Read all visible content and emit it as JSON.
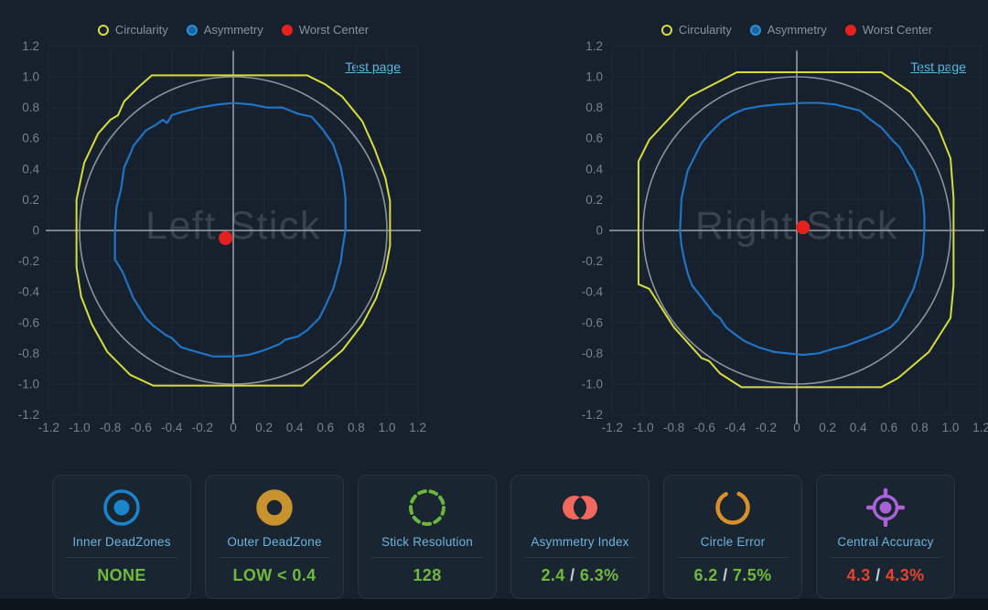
{
  "colors": {
    "background": "#16212d",
    "grid": "#1d2a37",
    "axis": "#9aa1a8",
    "tick_text": "#78828c",
    "legend_text": "#8a929b",
    "unit_circle": "#8b9299",
    "circularity": "#d8dc3a",
    "asymmetry": "#2173c4",
    "worst_center": "#e5201f",
    "link": "#56bade",
    "watermark": "#38424e",
    "card_label": "#6fb3d9",
    "good": "#71b93c",
    "bad": "#e8422e",
    "separator": "#c4cdd4"
  },
  "chart_data": {
    "type": "scatter",
    "legend": {
      "position": "top",
      "items": [
        {
          "label": "Circularity",
          "ring": "#d9dd3c",
          "fill": "none"
        },
        {
          "label": "Asymmetry",
          "ring": "#2f8fd6",
          "fill": "#1663a6"
        },
        {
          "label": "Worst Center",
          "ring": "#e8201f",
          "fill": "#e8201f"
        }
      ]
    },
    "axis": {
      "range": [
        -1.2,
        1.2
      ],
      "grid": true,
      "tick_labels": [
        "-1.2",
        "-1.0",
        "-0.8",
        "-0.6",
        "-0.4",
        "-0.2",
        "0",
        "0.2",
        "0.4",
        "0.6",
        "0.8",
        "1.0",
        "1.2"
      ]
    },
    "charts": [
      {
        "watermark": "Left Stick",
        "link_label": "Test page",
        "unit_circle_radius": 1.0,
        "worst_center": [
          -0.05,
          -0.05
        ],
        "circularity_outline": [
          [
            -0.53,
            1.01
          ],
          [
            0.48,
            1.01
          ],
          [
            0.6,
            0.95
          ],
          [
            0.71,
            0.87
          ],
          [
            0.84,
            0.71
          ],
          [
            0.92,
            0.53
          ],
          [
            0.99,
            0.34
          ],
          [
            1.02,
            0.19
          ],
          [
            1.02,
            -0.1
          ],
          [
            0.99,
            -0.26
          ],
          [
            0.93,
            -0.44
          ],
          [
            0.84,
            -0.61
          ],
          [
            0.71,
            -0.78
          ],
          [
            0.56,
            -0.91
          ],
          [
            0.45,
            -1.01
          ],
          [
            -0.52,
            -1.01
          ],
          [
            -0.67,
            -0.94
          ],
          [
            -0.82,
            -0.79
          ],
          [
            -0.92,
            -0.61
          ],
          [
            -0.99,
            -0.43
          ],
          [
            -1.02,
            -0.24
          ],
          [
            -1.02,
            0.2
          ],
          [
            -0.97,
            0.44
          ],
          [
            -0.88,
            0.63
          ],
          [
            -0.8,
            0.72
          ],
          [
            -0.75,
            0.75
          ],
          [
            -0.71,
            0.84
          ],
          [
            -0.62,
            0.93
          ]
        ],
        "asymmetry_outline": [
          [
            0.0,
            0.83
          ],
          [
            0.12,
            0.82
          ],
          [
            0.22,
            0.8
          ],
          [
            0.32,
            0.8
          ],
          [
            0.42,
            0.76
          ],
          [
            0.51,
            0.74
          ],
          [
            0.58,
            0.66
          ],
          [
            0.65,
            0.56
          ],
          [
            0.7,
            0.41
          ],
          [
            0.72,
            0.3
          ],
          [
            0.73,
            0.21
          ],
          [
            0.73,
            0.08
          ],
          [
            0.73,
            0.0
          ],
          [
            0.71,
            -0.12
          ],
          [
            0.7,
            -0.2
          ],
          [
            0.65,
            -0.38
          ],
          [
            0.6,
            -0.49
          ],
          [
            0.56,
            -0.57
          ],
          [
            0.48,
            -0.65
          ],
          [
            0.42,
            -0.69
          ],
          [
            0.34,
            -0.71
          ],
          [
            0.3,
            -0.74
          ],
          [
            0.2,
            -0.78
          ],
          [
            0.1,
            -0.81
          ],
          [
            0.0,
            -0.82
          ],
          [
            -0.13,
            -0.82
          ],
          [
            -0.24,
            -0.79
          ],
          [
            -0.34,
            -0.76
          ],
          [
            -0.4,
            -0.7
          ],
          [
            -0.44,
            -0.68
          ],
          [
            -0.52,
            -0.62
          ],
          [
            -0.57,
            -0.57
          ],
          [
            -0.65,
            -0.44
          ],
          [
            -0.7,
            -0.32
          ],
          [
            -0.72,
            -0.27
          ],
          [
            -0.77,
            -0.19
          ],
          [
            -0.77,
            -0.08
          ],
          [
            -0.77,
            0.0
          ],
          [
            -0.76,
            0.15
          ],
          [
            -0.73,
            0.27
          ],
          [
            -0.71,
            0.41
          ],
          [
            -0.67,
            0.5
          ],
          [
            -0.65,
            0.55
          ],
          [
            -0.57,
            0.65
          ],
          [
            -0.5,
            0.69
          ],
          [
            -0.46,
            0.72
          ],
          [
            -0.43,
            0.7
          ],
          [
            -0.4,
            0.75
          ],
          [
            -0.34,
            0.77
          ],
          [
            -0.22,
            0.8
          ],
          [
            -0.1,
            0.82
          ]
        ]
      },
      {
        "watermark": "Right Stick",
        "link_label": "Test page",
        "unit_circle_radius": 1.0,
        "worst_center": [
          0.04,
          0.02
        ],
        "circularity_outline": [
          [
            -0.39,
            1.03
          ],
          [
            0.55,
            1.03
          ],
          [
            0.74,
            0.9
          ],
          [
            0.92,
            0.67
          ],
          [
            1.0,
            0.47
          ],
          [
            1.02,
            0.21
          ],
          [
            1.02,
            -0.36
          ],
          [
            1.0,
            -0.57
          ],
          [
            0.86,
            -0.79
          ],
          [
            0.66,
            -0.96
          ],
          [
            0.55,
            -1.02
          ],
          [
            -0.36,
            -1.02
          ],
          [
            -0.5,
            -0.93
          ],
          [
            -0.57,
            -0.85
          ],
          [
            -0.62,
            -0.83
          ],
          [
            -0.8,
            -0.63
          ],
          [
            -0.96,
            -0.38
          ],
          [
            -1.03,
            -0.35
          ],
          [
            -1.03,
            0.45
          ],
          [
            -0.96,
            0.59
          ],
          [
            -0.7,
            0.87
          ]
        ],
        "asymmetry_outline": [
          [
            0.04,
            0.83
          ],
          [
            0.15,
            0.83
          ],
          [
            0.25,
            0.82
          ],
          [
            0.33,
            0.8
          ],
          [
            0.41,
            0.78
          ],
          [
            0.48,
            0.72
          ],
          [
            0.55,
            0.67
          ],
          [
            0.62,
            0.59
          ],
          [
            0.67,
            0.54
          ],
          [
            0.72,
            0.45
          ],
          [
            0.76,
            0.39
          ],
          [
            0.8,
            0.29
          ],
          [
            0.82,
            0.21
          ],
          [
            0.83,
            0.1
          ],
          [
            0.83,
            0.0
          ],
          [
            0.82,
            -0.16
          ],
          [
            0.79,
            -0.28
          ],
          [
            0.76,
            -0.38
          ],
          [
            0.71,
            -0.48
          ],
          [
            0.66,
            -0.58
          ],
          [
            0.61,
            -0.63
          ],
          [
            0.55,
            -0.66
          ],
          [
            0.48,
            -0.69
          ],
          [
            0.4,
            -0.72
          ],
          [
            0.32,
            -0.75
          ],
          [
            0.24,
            -0.77
          ],
          [
            0.14,
            -0.8
          ],
          [
            0.04,
            -0.81
          ],
          [
            -0.06,
            -0.8
          ],
          [
            -0.15,
            -0.79
          ],
          [
            -0.25,
            -0.76
          ],
          [
            -0.34,
            -0.72
          ],
          [
            -0.41,
            -0.67
          ],
          [
            -0.46,
            -0.63
          ],
          [
            -0.5,
            -0.57
          ],
          [
            -0.54,
            -0.54
          ],
          [
            -0.6,
            -0.46
          ],
          [
            -0.68,
            -0.36
          ],
          [
            -0.71,
            -0.28
          ],
          [
            -0.73,
            -0.2
          ],
          [
            -0.75,
            -0.1
          ],
          [
            -0.76,
            0.0
          ],
          [
            -0.75,
            0.21
          ],
          [
            -0.71,
            0.39
          ],
          [
            -0.66,
            0.49
          ],
          [
            -0.62,
            0.57
          ],
          [
            -0.56,
            0.64
          ],
          [
            -0.49,
            0.71
          ],
          [
            -0.41,
            0.76
          ],
          [
            -0.34,
            0.79
          ],
          [
            -0.23,
            0.81
          ],
          [
            -0.13,
            0.82
          ]
        ]
      }
    ]
  },
  "cards": [
    {
      "icon": "inner-deadzone-icon",
      "label": "Inner DeadZones",
      "value": "NONE",
      "status": "good"
    },
    {
      "icon": "outer-deadzone-icon",
      "label": "Outer DeadZone",
      "value": "LOW < 0.4",
      "status": "good"
    },
    {
      "icon": "stick-resolution-icon",
      "label": "Stick Resolution",
      "value": "128",
      "status": "good"
    },
    {
      "icon": "asymmetry-index-icon",
      "label": "Asymmetry Index",
      "value": "2.4 / 6.3%",
      "status": "good"
    },
    {
      "icon": "circle-error-icon",
      "label": "Circle Error",
      "value": "6.2 / 7.5%",
      "status": "good"
    },
    {
      "icon": "central-accuracy-icon",
      "label": "Central Accuracy",
      "value": "4.3 / 4.3%",
      "status": "bad"
    }
  ]
}
